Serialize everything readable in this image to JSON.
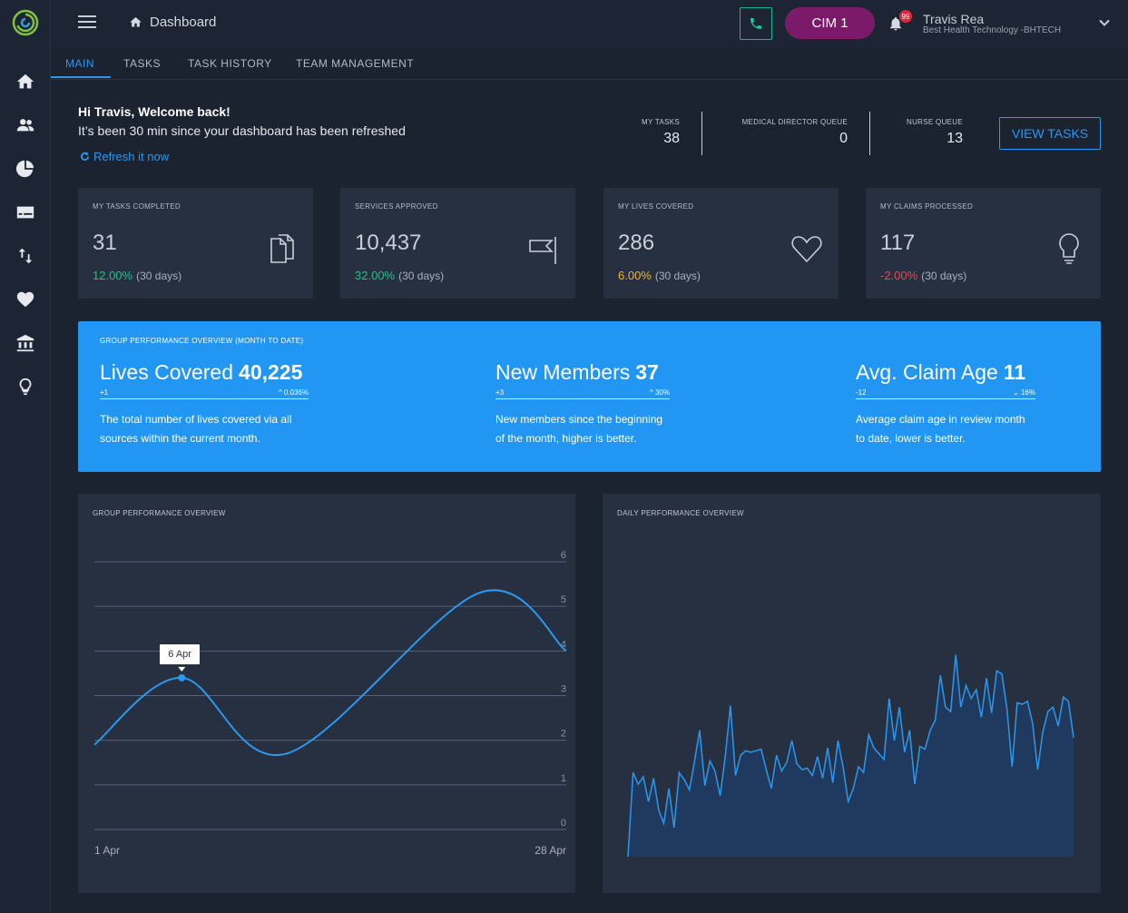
{
  "header": {
    "breadcrumb": "Dashboard",
    "cim_label": "CIM 1",
    "notification_count": "99",
    "user_name": "Travis Rea",
    "user_org": "Best Health Technology -BHTECH"
  },
  "tabs": [
    {
      "label": "MAIN",
      "active": true
    },
    {
      "label": "TASKS",
      "active": false
    },
    {
      "label": "TASK HISTORY",
      "active": false
    },
    {
      "label": "TEAM MANAGEMENT",
      "active": false
    }
  ],
  "welcome": {
    "title": "Hi Travis, Welcome back!",
    "subtitle": "It’s been 30 min since your dashboard has been refreshed",
    "refresh_label": "Refresh it now"
  },
  "queues": [
    {
      "label": "MY TASKS",
      "value": "38"
    },
    {
      "label": "MEDICAL DIRECTOR QUEUE",
      "value": "0"
    },
    {
      "label": "NURSE QUEUE",
      "value": "13"
    }
  ],
  "view_tasks_label": "VIEW TASKS",
  "stats": [
    {
      "label": "MY TASKS COMPLETED",
      "value": "31",
      "change": "12.00%",
      "period": "(30 days)",
      "color": "#21c08b",
      "icon": "document-icon"
    },
    {
      "label": "SERVICES APPROVED",
      "value": "10,437",
      "change": "32.00%",
      "period": "(30 days)",
      "color": "#21c08b",
      "icon": "flag-icon"
    },
    {
      "label": "MY LIVES COVERED",
      "value": "286",
      "change": "6.00%",
      "period": "(30 days)",
      "color": "#f0b429",
      "icon": "heart-icon"
    },
    {
      "label": "MY CLAIMS PROCESSED",
      "value": "117",
      "change": "-2.00%",
      "period": "(30 days)",
      "color": "#f0434f",
      "icon": "lightbulb-icon"
    }
  ],
  "banner": {
    "title": "GROUP PERFORMANCE OVERVIEW (MONTH TO DATE)",
    "kpis": [
      {
        "name": "Lives Covered",
        "value": "40,225",
        "delta": "+1",
        "trend": "0.036%",
        "trend_dir": "up",
        "desc_line1": "The total number of lives covered via all",
        "desc_line2": "sources within the current month."
      },
      {
        "name": "New Members",
        "value": "37",
        "delta": "+3",
        "trend": "30%",
        "trend_dir": "up",
        "desc_line1": "New members since the beginning",
        "desc_line2": "of the month, higher is better."
      },
      {
        "name": "Avg. Claim Age",
        "value": "11",
        "delta": "-12",
        "trend": "16%",
        "trend_dir": "down",
        "desc_line1": "Average claim age in review month",
        "desc_line2": "to date, lower is better."
      }
    ]
  },
  "chart_data": [
    {
      "type": "line",
      "title": "GROUP PERFORMANCE OVERVIEW",
      "x_labels": [
        "1 Apr",
        "28 Apr"
      ],
      "y_ticks": [
        0,
        1,
        2,
        3,
        4,
        5,
        6
      ],
      "ylim": [
        0,
        6
      ],
      "grid": true,
      "points": [
        {
          "x": 1,
          "y": 1.9
        },
        {
          "x": 6,
          "y": 3.4
        },
        {
          "x": 12,
          "y": 1.7
        },
        {
          "x": 23,
          "y": 5.3
        },
        {
          "x": 28,
          "y": 4.0
        }
      ],
      "highlight": {
        "x": 6,
        "y": 3.4,
        "label": "6 Apr"
      },
      "color": "#2b98f0"
    },
    {
      "type": "area",
      "title": "DAILY PERFORMANCE OVERVIEW",
      "values": [
        0,
        58,
        50,
        55,
        38,
        54,
        32,
        23,
        47,
        20,
        58,
        53,
        46,
        66,
        87,
        49,
        66,
        59,
        42,
        69,
        104,
        56,
        70,
        73,
        72,
        73,
        74,
        60,
        47,
        70,
        59,
        65,
        80,
        64,
        60,
        61,
        56,
        69,
        54,
        75,
        51,
        80,
        62,
        38,
        47,
        62,
        58,
        84,
        75,
        71,
        67,
        109,
        80,
        103,
        72,
        87,
        50,
        76,
        74,
        87,
        94,
        125,
        103,
        100,
        139,
        103,
        118,
        109,
        115,
        96,
        123,
        99,
        128,
        126,
        102,
        62,
        106,
        105,
        107,
        92,
        60,
        86,
        100,
        103,
        90,
        110,
        107,
        82
      ],
      "ylim": [
        0,
        150
      ],
      "color": "#2b98f0",
      "fill": "#1f3a5e"
    }
  ]
}
